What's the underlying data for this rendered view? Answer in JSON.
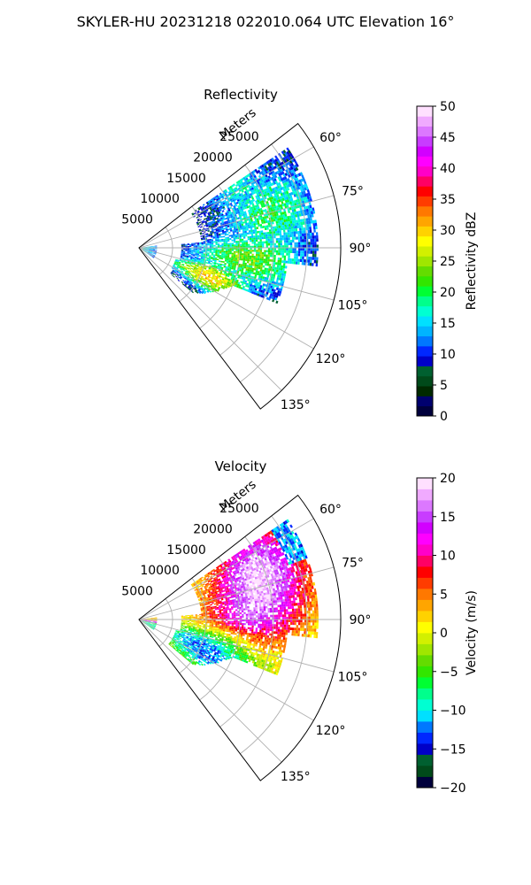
{
  "figure": {
    "title": "SKYLER-HU  20231218  022010.064 UTC Elevation 16°"
  },
  "colors": {
    "grid": "#b0b0b0",
    "frame": "#000000",
    "background": "#ffffff"
  },
  "chart_data": [
    {
      "type": "heatmap",
      "projection": "polar-sector",
      "title": "Reflectivity",
      "radial_label": "Meters",
      "radial_ticks": [
        "5000",
        "10000",
        "15000",
        "20000",
        "25000"
      ],
      "radial_tick_values": [
        5000,
        10000,
        15000,
        20000,
        25000
      ],
      "rlim": [
        0,
        30000
      ],
      "angle_ticks": [
        "60°",
        "75°",
        "90°",
        "105°",
        "120°",
        "135°"
      ],
      "angle_tick_values": [
        60,
        75,
        90,
        105,
        120,
        135
      ],
      "theta_range_deg": [
        52,
        143
      ],
      "grid": true,
      "colorbar": {
        "label": "Reflectivity dBZ",
        "ticks": [
          "0",
          "5",
          "10",
          "15",
          "20",
          "25",
          "30",
          "35",
          "40",
          "45",
          "50"
        ],
        "range": [
          0,
          50
        ],
        "colormap": "pyart_NWSRef",
        "colors": [
          "#00003c",
          "#00006e",
          "#002a00",
          "#004a1a",
          "#006030",
          "#0000c8",
          "#0028ff",
          "#0078ff",
          "#00b4ff",
          "#00e0ff",
          "#00ffd2",
          "#00ff8c",
          "#00ff32",
          "#32e600",
          "#64dc00",
          "#a0e600",
          "#d2f000",
          "#ffff00",
          "#ffd200",
          "#ffa500",
          "#ff7800",
          "#ff3c00",
          "#ff0000",
          "#ff0064",
          "#ff00c8",
          "#ff00ff",
          "#d200ff",
          "#c83cff",
          "#dc78ff",
          "#f0aaff",
          "#ffe0ff"
        ]
      },
      "summary": "Echo field of reflectivity roughly 5-35 dBZ, strongest near 100-110 degrees at 8-12 km range"
    },
    {
      "type": "heatmap",
      "projection": "polar-sector",
      "title": "Velocity",
      "radial_label": "Meters",
      "radial_ticks": [
        "5000",
        "10000",
        "15000",
        "20000",
        "25000"
      ],
      "radial_tick_values": [
        5000,
        10000,
        15000,
        20000,
        25000
      ],
      "rlim": [
        0,
        30000
      ],
      "angle_ticks": [
        "60°",
        "75°",
        "90°",
        "105°",
        "120°",
        "135°"
      ],
      "angle_tick_values": [
        60,
        75,
        90,
        105,
        120,
        135
      ],
      "theta_range_deg": [
        52,
        143
      ],
      "grid": true,
      "colorbar": {
        "label": "Velocity (m/s)",
        "ticks": [
          "−20",
          "−15",
          "−10",
          "−5",
          "0",
          "5",
          "10",
          "15",
          "20"
        ],
        "range": [
          -20,
          20
        ],
        "colormap": "pyart_BuDRd18",
        "colors": [
          "#00003c",
          "#004a1a",
          "#006030",
          "#0000c8",
          "#0028ff",
          "#0078ff",
          "#00e0ff",
          "#00ffd2",
          "#00ff8c",
          "#00ff32",
          "#32e600",
          "#64dc00",
          "#a0e600",
          "#d2f000",
          "#ffff00",
          "#ffd200",
          "#ffa500",
          "#ff7800",
          "#ff3c00",
          "#ff0000",
          "#ff0064",
          "#ff00c8",
          "#ff00ff",
          "#d200ff",
          "#c83cff",
          "#dc78ff",
          "#f0aaff",
          "#ffe0ff"
        ]
      },
      "summary": "Doppler velocity from about -15 to +18 m/s; positive (red/magenta) near 70-90 degrees, negative (green) at 100-130 degrees"
    }
  ]
}
